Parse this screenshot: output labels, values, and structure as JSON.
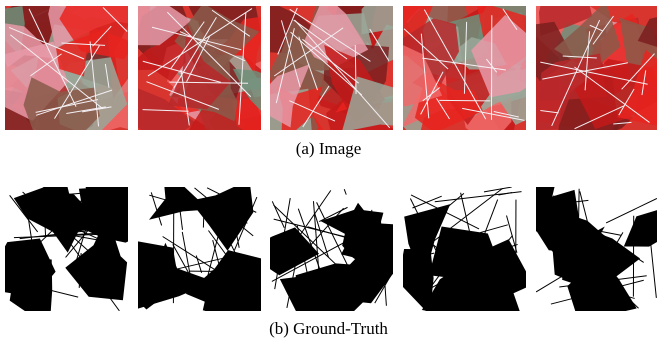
{
  "figure": {
    "panels": [
      {
        "caption": "(a) Image"
      },
      {
        "caption": "(b) Ground-Truth"
      }
    ]
  }
}
